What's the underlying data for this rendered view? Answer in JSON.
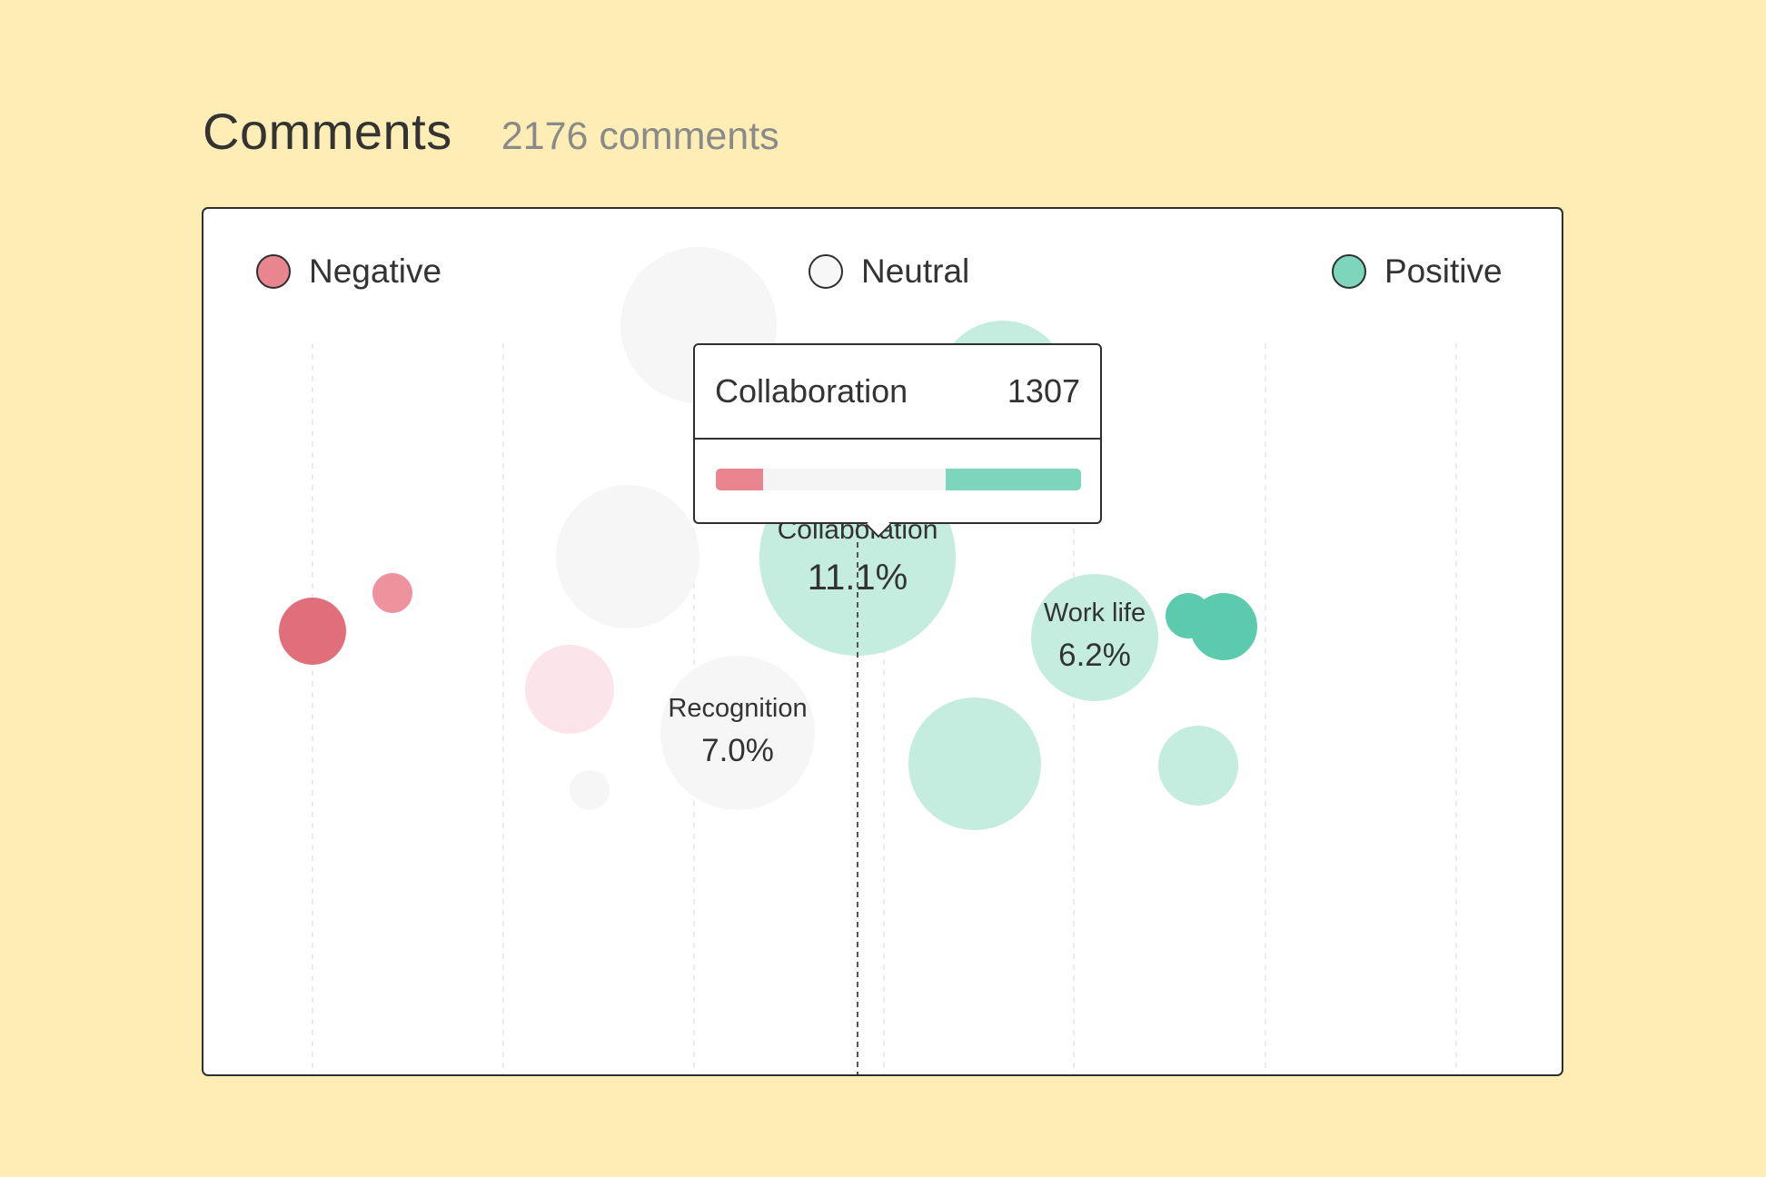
{
  "header": {
    "title": "Comments",
    "count": "2176 comments"
  },
  "legend": [
    {
      "label": "Negative",
      "color": "#E9858F"
    },
    {
      "label": "Neutral",
      "color": "#F7F7F7"
    },
    {
      "label": "Positive",
      "color": "#7DD6BB"
    }
  ],
  "colors": {
    "negative_strong": "#E06E7B",
    "negative": "#EE939E",
    "negative_light": "#FCE5EA",
    "neutral": "#F6F6F6",
    "positive_light": "#C4ECDF",
    "positive_strong": "#5CCBAD"
  },
  "tooltip": {
    "name": "Collaboration",
    "value": "1307",
    "sentiment_split": {
      "negative": 0.13,
      "neutral": 0.5,
      "positive": 0.37
    }
  },
  "chart_data": {
    "type": "scatter",
    "title": "",
    "xlabel": "",
    "ylabel": "",
    "grid": true,
    "legend_position": "top",
    "series": [
      {
        "name": "Negative",
        "points": [
          {
            "label": "",
            "value": ""
          },
          {
            "label": "",
            "value": ""
          },
          {
            "label": "",
            "value": ""
          }
        ]
      },
      {
        "name": "Neutral",
        "points": [
          {
            "label": "Recognition",
            "value": "7.0%"
          },
          {
            "label": "",
            "value": ""
          },
          {
            "label": "",
            "value": ""
          },
          {
            "label": "",
            "value": ""
          }
        ]
      },
      {
        "name": "Positive",
        "points": [
          {
            "label": "Collaboration",
            "value": "11.1%"
          },
          {
            "label": "Work life",
            "value": "6.2%"
          },
          {
            "label": "",
            "value": ""
          },
          {
            "label": "",
            "value": ""
          },
          {
            "label": "",
            "value": ""
          },
          {
            "label": "",
            "value": ""
          },
          {
            "label": "",
            "value": ""
          },
          {
            "label": "",
            "value": ""
          }
        ]
      }
    ]
  }
}
